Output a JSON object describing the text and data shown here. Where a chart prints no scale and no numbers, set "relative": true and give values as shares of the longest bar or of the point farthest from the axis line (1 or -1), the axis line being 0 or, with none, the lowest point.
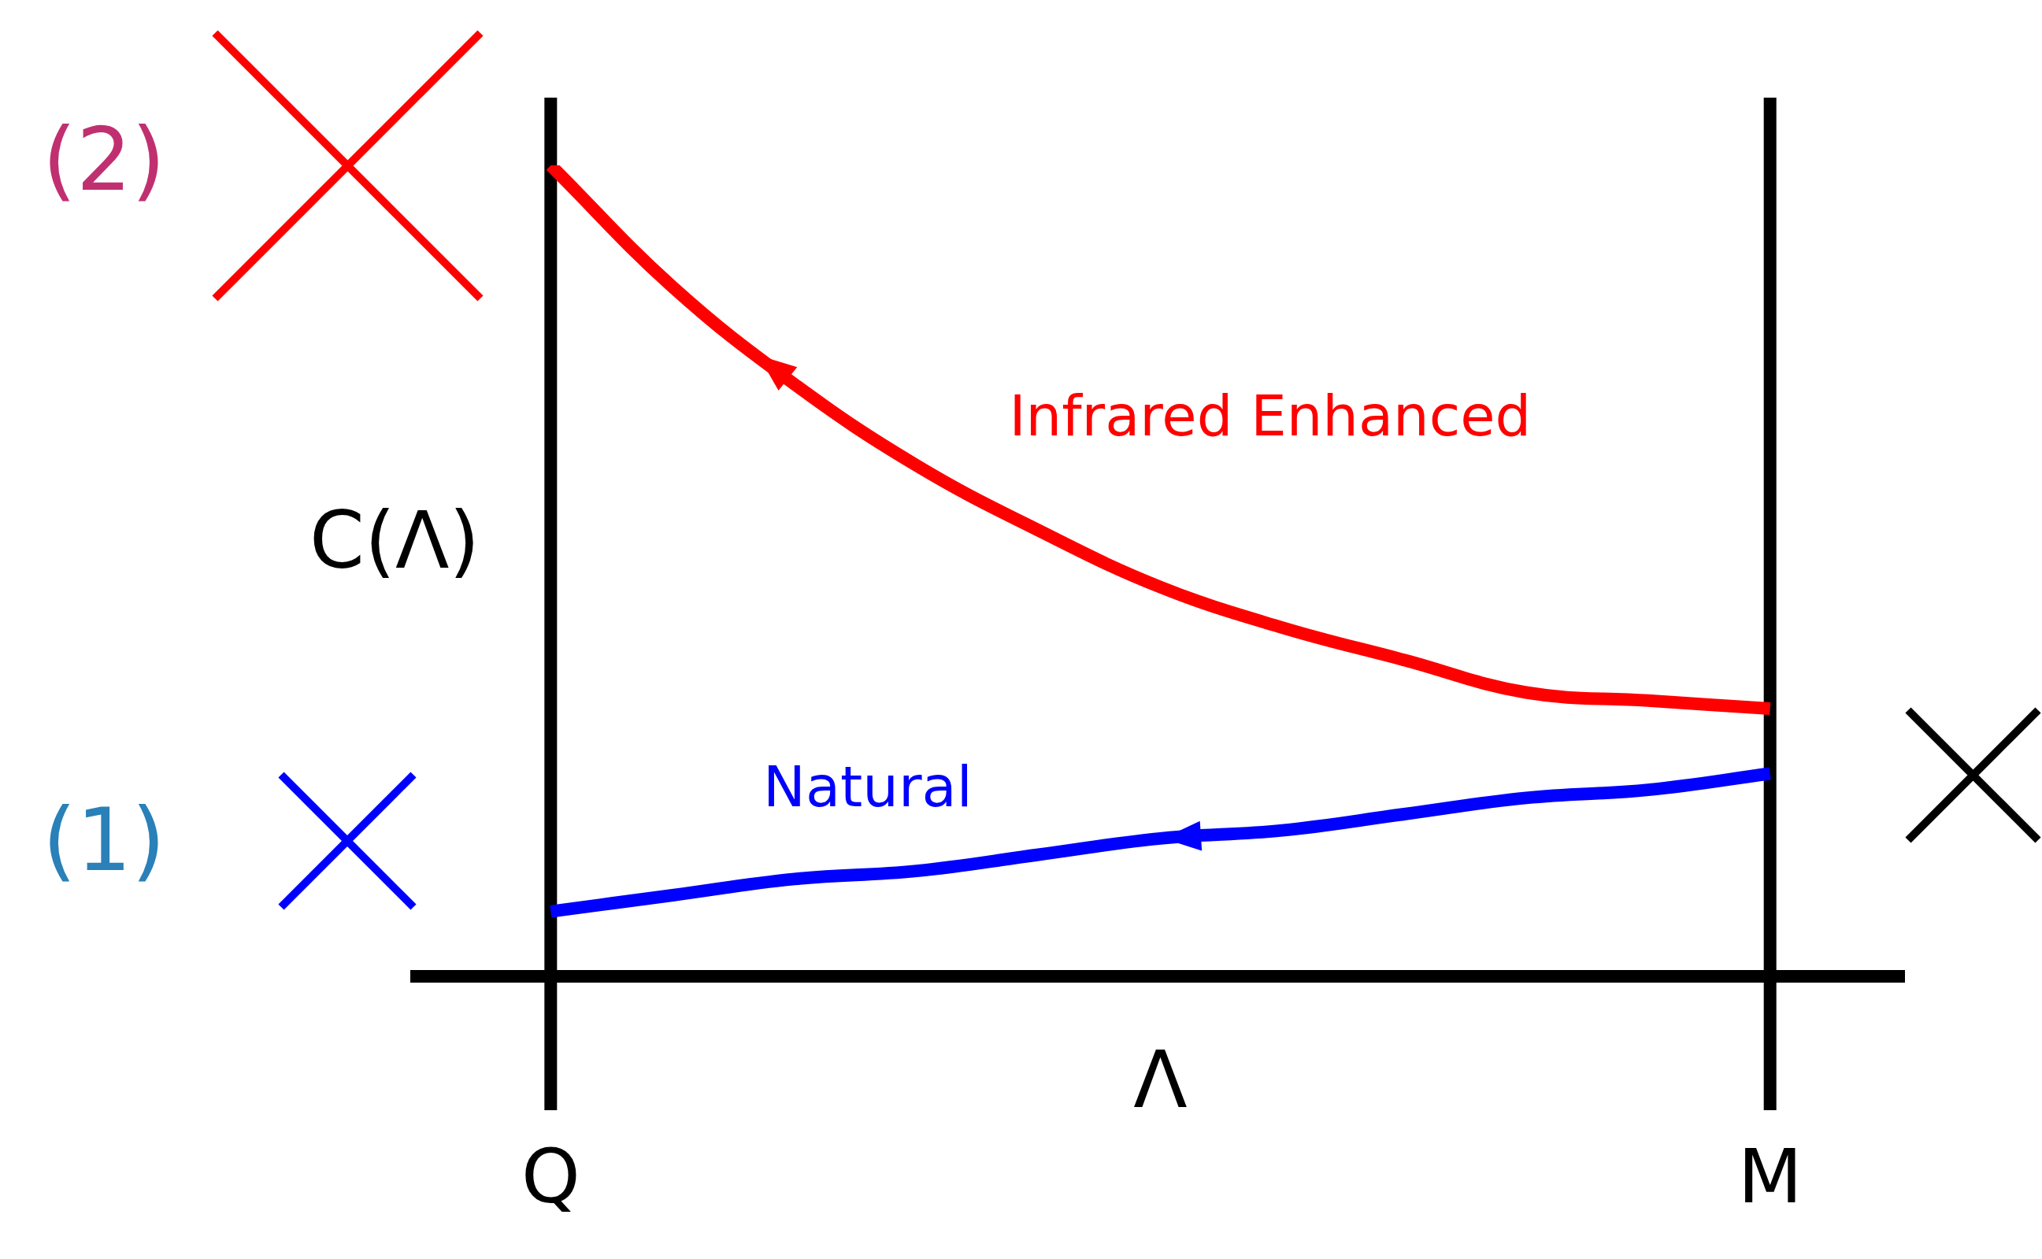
{
  "chart_data": {
    "type": "line",
    "relative": true,
    "xlabel": "Λ",
    "ylabel": "C(Λ)",
    "categories": [
      "Q",
      null,
      null,
      null,
      null,
      null,
      null,
      null,
      null,
      null,
      "M"
    ],
    "series": [
      {
        "name": "Infrared Enhanced",
        "color": "#ff0000",
        "values": [
          1,
          0.85,
          0.73,
          0.63,
          0.55,
          0.48,
          0.43,
          0.39,
          0.35,
          0.34,
          0.33
        ]
      },
      {
        "name": "Natural",
        "color": "#0000ff",
        "values": [
          0.08,
          0.1,
          0.12,
          0.13,
          0.15,
          0.17,
          0.18,
          0.2,
          0.22,
          0.23,
          0.25
        ]
      }
    ],
    "ref_lines": [
      {
        "axis": "x",
        "value": "Q",
        "color": "#000000"
      },
      {
        "axis": "x",
        "value": "M",
        "color": "#000000"
      }
    ],
    "annotations": [
      "(2)",
      "(1)"
    ],
    "marker": "none",
    "line_style": "solid"
  }
}
